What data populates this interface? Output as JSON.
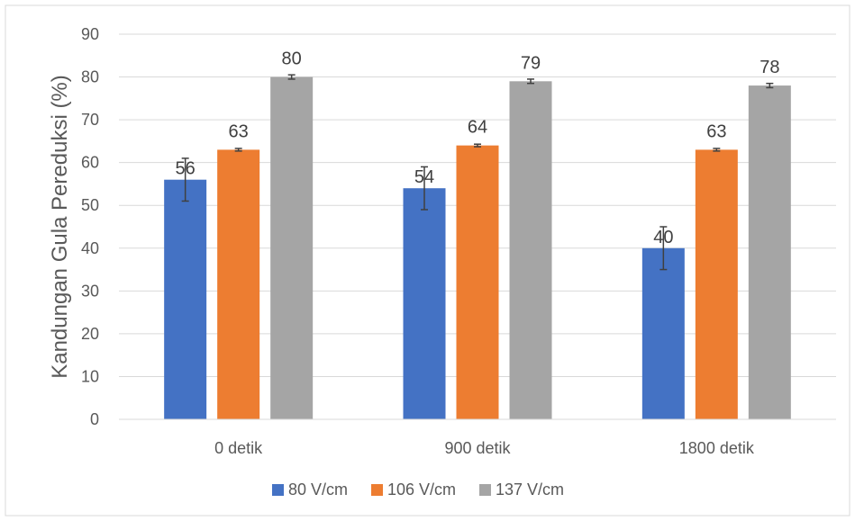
{
  "chart_data": {
    "type": "bar",
    "title": "",
    "xlabel": "",
    "ylabel": "Kandungan Gula Pereduksi (%)",
    "ylim": [
      0,
      90
    ],
    "yticks": [
      0,
      10,
      20,
      30,
      40,
      50,
      60,
      70,
      80,
      90
    ],
    "grid": true,
    "legend_position": "bottom",
    "categories": [
      "0 detik",
      "900 detik",
      "1800 detik"
    ],
    "series": [
      {
        "name": "80 V/cm",
        "color": "#4472c4",
        "values": [
          56,
          54,
          40
        ],
        "errors": [
          5,
          5,
          5
        ],
        "labels": [
          "56",
          "54",
          "40"
        ]
      },
      {
        "name": "106 V/cm",
        "color": "#ed7d31",
        "values": [
          63,
          64,
          63
        ],
        "errors": [
          0.3,
          0.3,
          0.3
        ],
        "labels": [
          "63",
          "64",
          "63"
        ]
      },
      {
        "name": "137 V/cm",
        "color": "#a5a5a5",
        "values": [
          80,
          79,
          78
        ],
        "errors": [
          0.5,
          0.5,
          0.5
        ],
        "labels": [
          "80",
          "79",
          "78"
        ]
      }
    ]
  }
}
